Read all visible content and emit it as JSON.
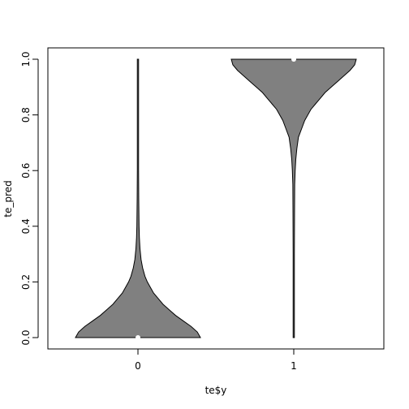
{
  "chart_data": {
    "type": "violin",
    "title": "",
    "xlabel": "te$y",
    "ylabel": "te_pred",
    "categories": [
      "0",
      "1"
    ],
    "ylim": [
      0,
      1
    ],
    "yticks": [
      "0.0",
      "0.2",
      "0.4",
      "0.6",
      "0.8",
      "1.0"
    ],
    "violin_color": "#808080",
    "median_marker_color": "#ffffff",
    "series": [
      {
        "category": "0",
        "min": 0.0,
        "max": 1.0,
        "median": 0.0,
        "density": [
          [
            0.0,
            0.4
          ],
          [
            0.02,
            0.38
          ],
          [
            0.04,
            0.34
          ],
          [
            0.06,
            0.29
          ],
          [
            0.08,
            0.24
          ],
          [
            0.1,
            0.2
          ],
          [
            0.12,
            0.16
          ],
          [
            0.14,
            0.13
          ],
          [
            0.16,
            0.1
          ],
          [
            0.18,
            0.08
          ],
          [
            0.2,
            0.06
          ],
          [
            0.22,
            0.045
          ],
          [
            0.25,
            0.03
          ],
          [
            0.28,
            0.02
          ],
          [
            0.32,
            0.013
          ],
          [
            0.36,
            0.009
          ],
          [
            0.4,
            0.007
          ],
          [
            0.5,
            0.005
          ],
          [
            0.6,
            0.004
          ],
          [
            0.8,
            0.004
          ],
          [
            1.0,
            0.004
          ]
        ]
      },
      {
        "category": "1",
        "min": 0.0,
        "max": 1.0,
        "median": 1.0,
        "density": [
          [
            0.0,
            0.004
          ],
          [
            0.3,
            0.004
          ],
          [
            0.45,
            0.005
          ],
          [
            0.55,
            0.006
          ],
          [
            0.6,
            0.009
          ],
          [
            0.64,
            0.013
          ],
          [
            0.68,
            0.02
          ],
          [
            0.72,
            0.03
          ],
          [
            0.75,
            0.05
          ],
          [
            0.78,
            0.07
          ],
          [
            0.8,
            0.09
          ],
          [
            0.82,
            0.11
          ],
          [
            0.84,
            0.14
          ],
          [
            0.86,
            0.17
          ],
          [
            0.88,
            0.2
          ],
          [
            0.9,
            0.24
          ],
          [
            0.92,
            0.28
          ],
          [
            0.94,
            0.32
          ],
          [
            0.96,
            0.36
          ],
          [
            0.98,
            0.39
          ],
          [
            1.0,
            0.4
          ]
        ]
      }
    ]
  }
}
